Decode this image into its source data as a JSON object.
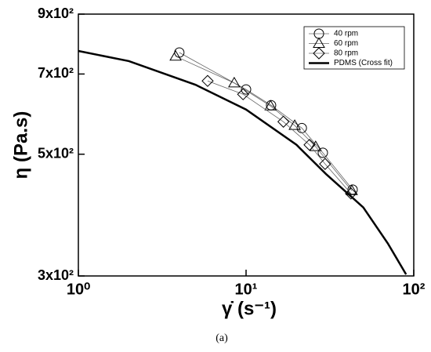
{
  "chart_data": {
    "type": "line",
    "x_label": "γ̇ (s⁻¹)",
    "y_label": "η (Pa.s)",
    "caption": "(a)",
    "xscale": "log",
    "yscale": "log",
    "xlim": [
      1,
      100
    ],
    "ylim": [
      300,
      900
    ],
    "xticks": [
      {
        "value": 1,
        "label": "10⁰"
      },
      {
        "value": 10,
        "label": "10¹"
      },
      {
        "value": 100,
        "label": "10²"
      }
    ],
    "yticks": [
      {
        "value": 300,
        "label": "3x10²"
      },
      {
        "value": 500,
        "label": "5x10²"
      },
      {
        "value": 700,
        "label": "7x10²"
      },
      {
        "value": 900,
        "label": "9x10²"
      }
    ],
    "legend": "upper right",
    "series": [
      {
        "name": "40 rpm",
        "color": "#000000",
        "marker": "circle",
        "x": [
          4,
          10,
          14.1,
          21.5,
          28.7,
          43.2
        ],
        "values": [
          766,
          656,
          614,
          558,
          503,
          431
        ]
      },
      {
        "name": "60 rpm",
        "color": "#000000",
        "marker": "triangle",
        "x": [
          3.8,
          8.5,
          14,
          19.5,
          26,
          42.7
        ],
        "values": [
          754,
          674,
          612,
          564,
          516,
          429
        ]
      },
      {
        "name": "80 rpm",
        "color": "#000000",
        "marker": "diamond",
        "x": [
          5.9,
          9.6,
          16.7,
          23.9,
          29.6,
          42.2
        ],
        "values": [
          680,
          643,
          573,
          520,
          480,
          424
        ]
      },
      {
        "name": "PDMS (Cross fit)",
        "color": "#000000",
        "marker": "none",
        "x": [
          1,
          2,
          5,
          10,
          20,
          30,
          50,
          70,
          90
        ],
        "values": [
          771,
          739,
          669,
          603,
          520,
          460,
          400,
          344,
          302
        ]
      }
    ]
  }
}
